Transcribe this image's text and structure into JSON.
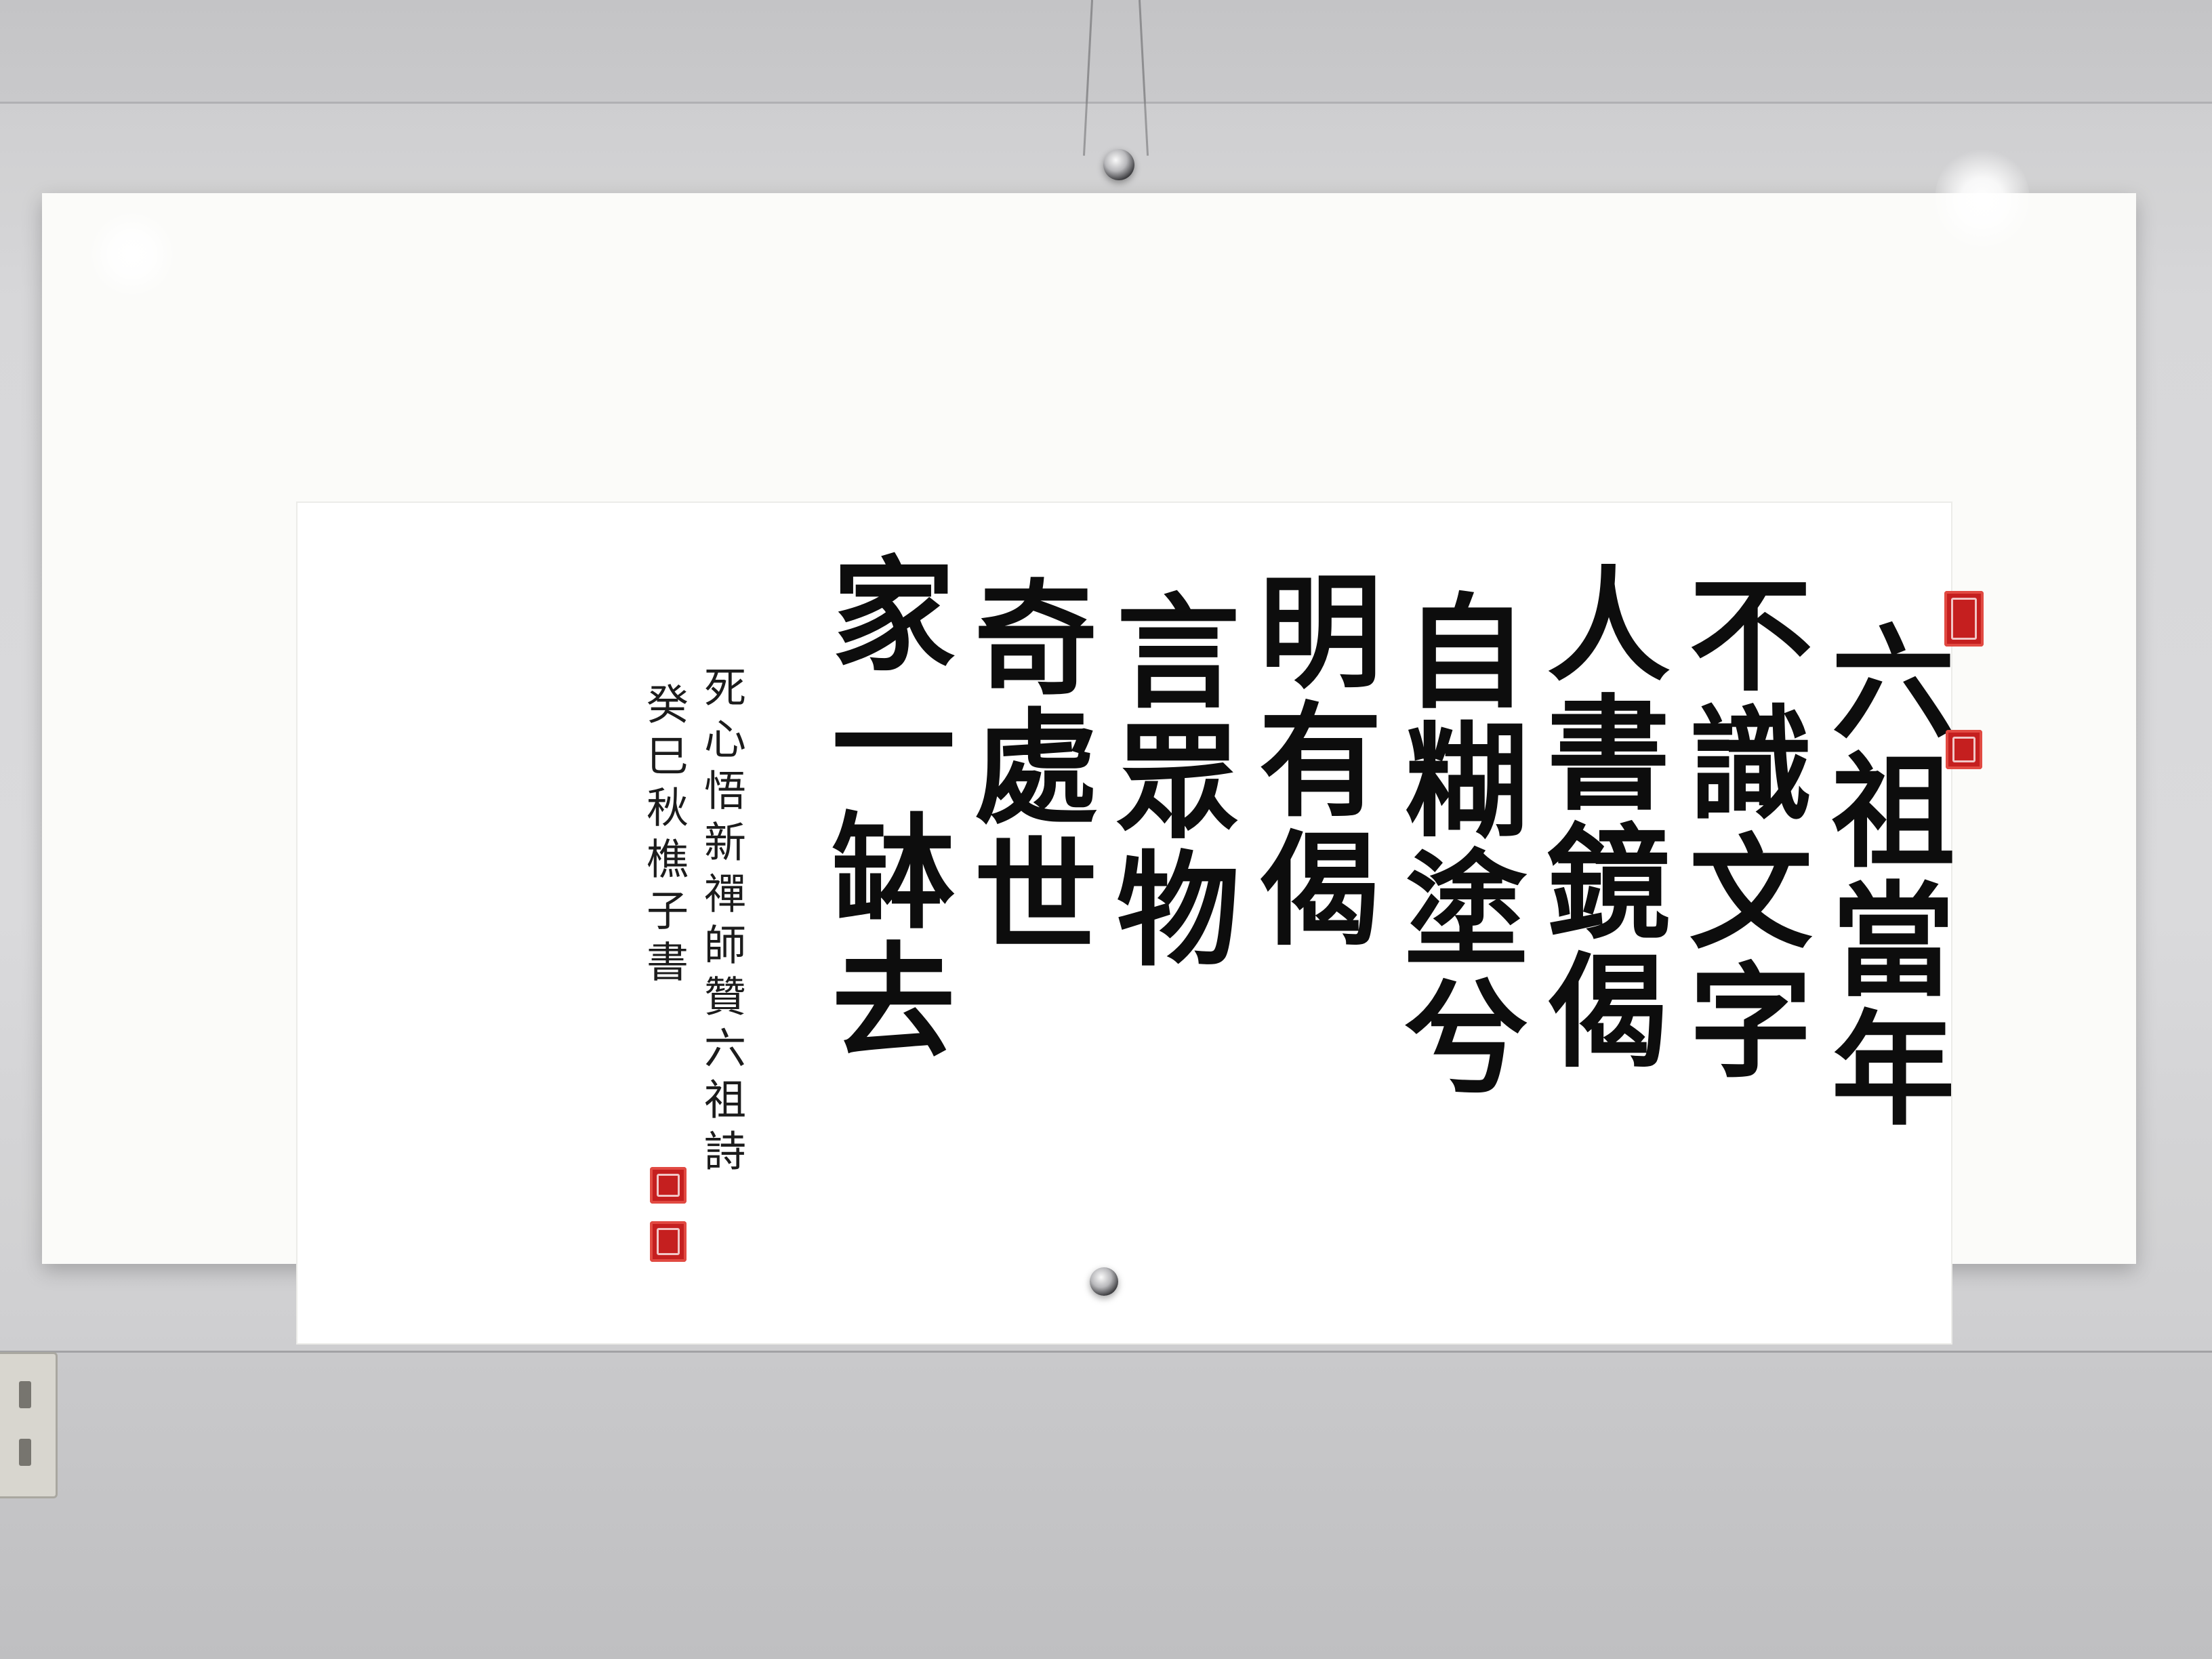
{
  "scene": {
    "subject": "framed-calligraphy-scroll",
    "colors": {
      "wall": "#d3d3d5",
      "paper": "#ffffff",
      "ink": "#0d0d0d",
      "seal": "#c51f1f"
    }
  },
  "calligraphy": {
    "main_columns": [
      "六祖當年",
      "不識文字",
      "人書鏡偈",
      "自糊塗兮",
      "明有偈",
      "言眾物",
      "奇處世",
      "家一缽去"
    ],
    "inscription_columns": [
      "死心悟新禪師贊六祖詩",
      "癸巳秋樵子書"
    ]
  }
}
